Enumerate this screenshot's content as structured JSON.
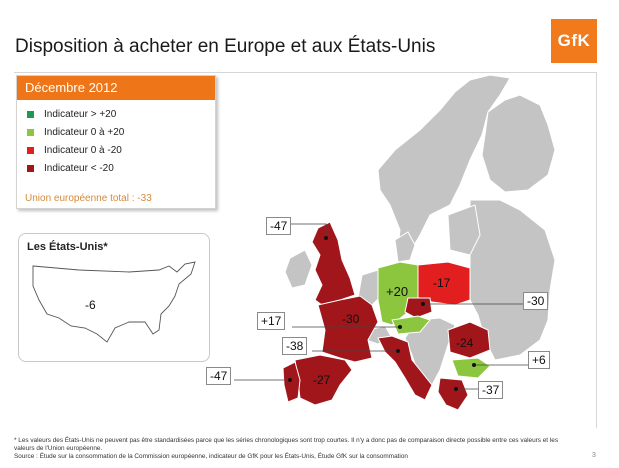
{
  "title": "Disposition à acheter en Europe et aux États-Unis",
  "logo_text": "GfK",
  "legend": {
    "header": "Décembre 2012",
    "items": [
      {
        "label": "Indicateur > +20",
        "color": "#1a9a56"
      },
      {
        "label": "Indicateur 0 à +20",
        "color": "#8cc63f"
      },
      {
        "label": "Indicateur 0 à -20",
        "color": "#e31e1e"
      },
      {
        "label": "Indicateur < -20",
        "color": "#a0161b"
      }
    ],
    "total": "Union européenne total : -33"
  },
  "us": {
    "title": "Les États-Unis*",
    "value": "-6"
  },
  "countries": [
    {
      "name": "Royaume-Uni",
      "value": "-47",
      "category": "< -20"
    },
    {
      "name": "Allemagne",
      "value": "+20",
      "category": "0 à +20"
    },
    {
      "name": "Pologne",
      "value": "-17",
      "category": "0 à -20"
    },
    {
      "name": "République tchèque",
      "value": "-30",
      "category": "< -20"
    },
    {
      "name": "France",
      "value": "-30",
      "category": "< -20"
    },
    {
      "name": "Autriche",
      "value": "+17",
      "category": "0 à +20"
    },
    {
      "name": "Roumanie",
      "value": "-24",
      "category": "< -20"
    },
    {
      "name": "Bulgarie",
      "value": "+6",
      "category": "0 à +20"
    },
    {
      "name": "Italie",
      "value": "-38",
      "category": "< -20"
    },
    {
      "name": "Espagne",
      "value": "-27",
      "category": "< -20"
    },
    {
      "name": "Portugal",
      "value": "-47",
      "category": "< -20"
    },
    {
      "name": "Grèce",
      "value": "-37",
      "category": "< -20"
    }
  ],
  "colors": {
    "land_other": "#c4c4c4",
    "dark_red": "#a0161b",
    "red": "#e31e1e",
    "light_green": "#8cc63f",
    "brand_orange": "#ee7518"
  },
  "footnote": {
    "line1": "* Les valeurs des États-Unis ne peuvent pas être standardisées parce que les séries chronologiques sont trop courtes. Il n'y a donc pas de comparaison directe possible entre ces valeurs et les valeurs de l'Union européenne.",
    "line2": "Source : Étude sur la consommation de la Commission européenne, indicateur de GfK pour les États-Unis, Étude GfK sur la consommation"
  },
  "page_number": "3"
}
